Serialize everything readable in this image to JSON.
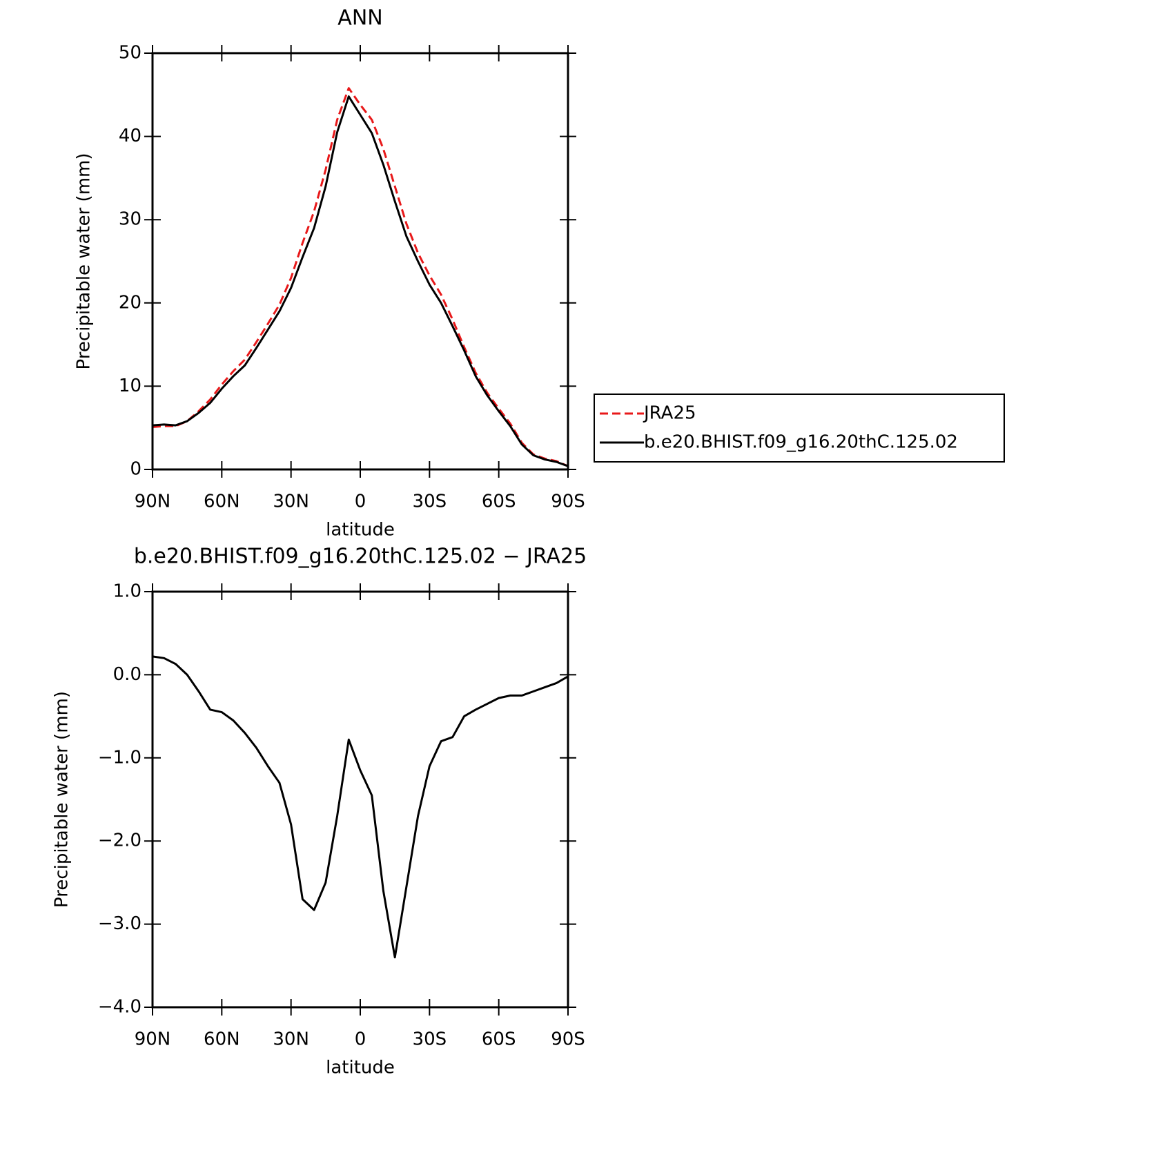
{
  "chart_data": [
    {
      "type": "line",
      "title": "ANN",
      "x_label": "latitude",
      "y_label": "Precipitable water (mm)",
      "x": [
        90,
        85,
        80,
        75,
        70,
        65,
        60,
        55,
        50,
        45,
        40,
        35,
        30,
        25,
        20,
        15,
        10,
        5,
        0,
        -5,
        -10,
        -15,
        -20,
        -25,
        -30,
        -35,
        -40,
        -45,
        -50,
        -55,
        -60,
        -65,
        -70,
        -75,
        -80,
        -85,
        -90
      ],
      "series": [
        {
          "name": "JRA25",
          "color": "#e8191a",
          "style": "dashed",
          "values": [
            5.1,
            5.2,
            5.2,
            5.8,
            7.0,
            8.4,
            10.2,
            11.8,
            13.2,
            15.3,
            17.5,
            19.8,
            23.0,
            27.2,
            31.0,
            36.0,
            42.0,
            45.8,
            43.8,
            42.0,
            38.5,
            34.0,
            29.5,
            26.0,
            23.3,
            21.0,
            18.0,
            14.7,
            11.6,
            9.2,
            7.3,
            5.5,
            3.2,
            1.8,
            1.3,
            1.0,
            0.4
          ]
        },
        {
          "name": "b.e20.BHIST.f09_g16.20thC.125.02",
          "color": "#000000",
          "style": "solid",
          "values": [
            5.3,
            5.4,
            5.3,
            5.8,
            6.8,
            8.0,
            9.7,
            11.2,
            12.5,
            14.6,
            16.8,
            19.0,
            21.8,
            25.5,
            29.0,
            34.0,
            40.5,
            44.8,
            42.6,
            40.4,
            36.6,
            32.2,
            28.0,
            25.0,
            22.2,
            20.0,
            17.2,
            14.3,
            11.2,
            8.9,
            7.0,
            5.2,
            3.0,
            1.7,
            1.2,
            0.9,
            0.4
          ]
        }
      ],
      "xlim": [
        90,
        -90
      ],
      "xticks": [
        {
          "value": 90,
          "label": "90N"
        },
        {
          "value": 60,
          "label": "60N"
        },
        {
          "value": 30,
          "label": "30N"
        },
        0,
        {
          "value": -30,
          "label": "30S"
        },
        {
          "value": -60,
          "label": "60S"
        },
        {
          "value": -90,
          "label": "90S"
        }
      ],
      "ylim": [
        0,
        50
      ],
      "yticks": [
        0,
        10,
        20,
        30,
        40,
        50
      ],
      "legend": "right"
    },
    {
      "type": "line",
      "title": "b.e20.BHIST.f09_g16.20thC.125.02 − JRA25",
      "x_label": "latitude",
      "y_label": "Precipitable water (mm)",
      "x": [
        90,
        85,
        80,
        75,
        70,
        65,
        60,
        55,
        50,
        45,
        40,
        35,
        30,
        25,
        20,
        15,
        10,
        5,
        0,
        -5,
        -10,
        -15,
        -20,
        -25,
        -30,
        -35,
        -40,
        -45,
        -50,
        -55,
        -60,
        -65,
        -70,
        -75,
        -80,
        -85,
        -90
      ],
      "series": [
        {
          "color": "#000000",
          "style": "solid",
          "values": [
            0.22,
            0.2,
            0.13,
            0.0,
            -0.2,
            -0.42,
            -0.45,
            -0.55,
            -0.7,
            -0.88,
            -1.1,
            -1.3,
            -1.8,
            -2.7,
            -2.83,
            -2.5,
            -1.7,
            -0.78,
            -1.15,
            -1.45,
            -2.6,
            -3.4,
            -2.55,
            -1.7,
            -1.1,
            -0.8,
            -0.75,
            -0.5,
            -0.42,
            -0.35,
            -0.28,
            -0.25,
            -0.25,
            -0.2,
            -0.15,
            -0.1,
            -0.02
          ]
        }
      ],
      "xlim": [
        90,
        -90
      ],
      "xticks": [
        {
          "value": 90,
          "label": "90N"
        },
        {
          "value": 60,
          "label": "60N"
        },
        {
          "value": 30,
          "label": "30N"
        },
        0,
        {
          "value": -30,
          "label": "30S"
        },
        {
          "value": -60,
          "label": "60S"
        },
        {
          "value": -90,
          "label": "90S"
        }
      ],
      "ylim": [
        -4,
        1
      ],
      "yticks": [
        {
          "value": -4,
          "label": "−4.0"
        },
        {
          "value": -3,
          "label": "−3.0"
        },
        {
          "value": -2,
          "label": "−2.0"
        },
        {
          "value": -1,
          "label": "−1.0"
        },
        {
          "value": 0,
          "label": "0.0"
        },
        {
          "value": 1,
          "label": "1.0"
        }
      ]
    }
  ]
}
